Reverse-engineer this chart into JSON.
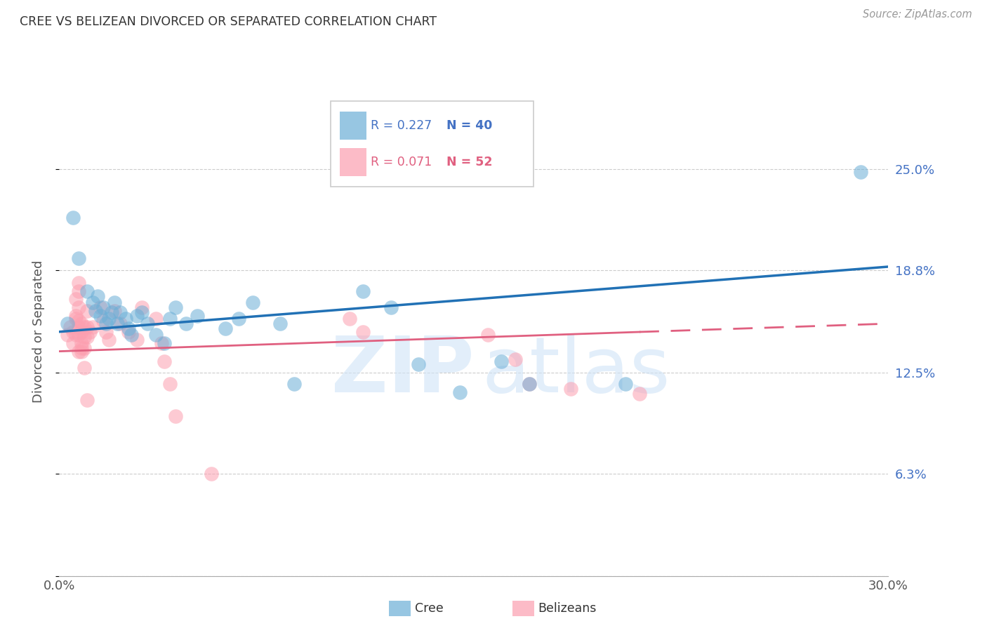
{
  "title": "CREE VS BELIZEAN DIVORCED OR SEPARATED CORRELATION CHART",
  "source": "Source: ZipAtlas.com",
  "ylabel": "Divorced or Separated",
  "xlim": [
    0.0,
    0.3
  ],
  "ylim": [
    0.0,
    0.3
  ],
  "ytick_labels": [
    "",
    "6.3%",
    "12.5%",
    "18.8%",
    "25.0%"
  ],
  "ytick_values": [
    0.0,
    0.063,
    0.125,
    0.188,
    0.25
  ],
  "xtick_values": [
    0.0,
    0.05,
    0.1,
    0.15,
    0.2,
    0.25,
    0.3
  ],
  "xtick_labels": [
    "0.0%",
    "",
    "",
    "",
    "",
    "",
    "30.0%"
  ],
  "cree_color": "#6baed6",
  "belizean_color": "#fc9fb0",
  "cree_line_color": "#2171b5",
  "belizean_line_color": "#e06080",
  "cree_points": [
    [
      0.003,
      0.155
    ],
    [
      0.005,
      0.22
    ],
    [
      0.007,
      0.195
    ],
    [
      0.01,
      0.175
    ],
    [
      0.012,
      0.168
    ],
    [
      0.013,
      0.163
    ],
    [
      0.014,
      0.172
    ],
    [
      0.015,
      0.16
    ],
    [
      0.016,
      0.165
    ],
    [
      0.017,
      0.155
    ],
    [
      0.018,
      0.158
    ],
    [
      0.019,
      0.162
    ],
    [
      0.02,
      0.168
    ],
    [
      0.021,
      0.155
    ],
    [
      0.022,
      0.162
    ],
    [
      0.024,
      0.158
    ],
    [
      0.025,
      0.152
    ],
    [
      0.026,
      0.148
    ],
    [
      0.028,
      0.16
    ],
    [
      0.03,
      0.162
    ],
    [
      0.032,
      0.155
    ],
    [
      0.035,
      0.148
    ],
    [
      0.038,
      0.143
    ],
    [
      0.04,
      0.158
    ],
    [
      0.042,
      0.165
    ],
    [
      0.046,
      0.155
    ],
    [
      0.05,
      0.16
    ],
    [
      0.06,
      0.152
    ],
    [
      0.065,
      0.158
    ],
    [
      0.07,
      0.168
    ],
    [
      0.08,
      0.155
    ],
    [
      0.085,
      0.118
    ],
    [
      0.11,
      0.175
    ],
    [
      0.12,
      0.165
    ],
    [
      0.13,
      0.13
    ],
    [
      0.145,
      0.113
    ],
    [
      0.16,
      0.132
    ],
    [
      0.17,
      0.118
    ],
    [
      0.205,
      0.118
    ],
    [
      0.29,
      0.248
    ]
  ],
  "belizean_points": [
    [
      0.003,
      0.148
    ],
    [
      0.004,
      0.153
    ],
    [
      0.005,
      0.15
    ],
    [
      0.005,
      0.143
    ],
    [
      0.006,
      0.158
    ],
    [
      0.006,
      0.148
    ],
    [
      0.006,
      0.16
    ],
    [
      0.006,
      0.17
    ],
    [
      0.007,
      0.157
    ],
    [
      0.007,
      0.153
    ],
    [
      0.007,
      0.148
    ],
    [
      0.007,
      0.138
    ],
    [
      0.007,
      0.18
    ],
    [
      0.007,
      0.175
    ],
    [
      0.007,
      0.165
    ],
    [
      0.008,
      0.155
    ],
    [
      0.008,
      0.15
    ],
    [
      0.008,
      0.143
    ],
    [
      0.008,
      0.14
    ],
    [
      0.008,
      0.138
    ],
    [
      0.009,
      0.153
    ],
    [
      0.009,
      0.147
    ],
    [
      0.009,
      0.14
    ],
    [
      0.009,
      0.128
    ],
    [
      0.01,
      0.163
    ],
    [
      0.01,
      0.153
    ],
    [
      0.01,
      0.147
    ],
    [
      0.01,
      0.108
    ],
    [
      0.011,
      0.15
    ],
    [
      0.012,
      0.153
    ],
    [
      0.015,
      0.165
    ],
    [
      0.016,
      0.157
    ],
    [
      0.017,
      0.15
    ],
    [
      0.018,
      0.145
    ],
    [
      0.02,
      0.163
    ],
    [
      0.022,
      0.155
    ],
    [
      0.025,
      0.15
    ],
    [
      0.028,
      0.145
    ],
    [
      0.03,
      0.165
    ],
    [
      0.035,
      0.158
    ],
    [
      0.037,
      0.143
    ],
    [
      0.038,
      0.132
    ],
    [
      0.04,
      0.118
    ],
    [
      0.042,
      0.098
    ],
    [
      0.055,
      0.063
    ],
    [
      0.105,
      0.158
    ],
    [
      0.11,
      0.15
    ],
    [
      0.155,
      0.148
    ],
    [
      0.165,
      0.133
    ],
    [
      0.17,
      0.118
    ],
    [
      0.185,
      0.115
    ],
    [
      0.21,
      0.112
    ]
  ]
}
